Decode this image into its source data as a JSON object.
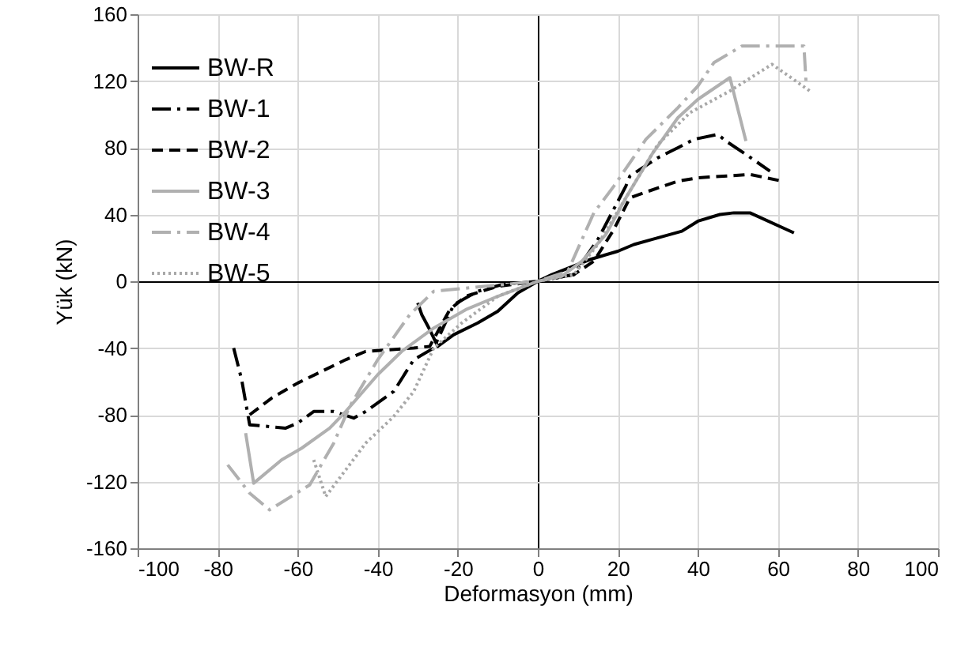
{
  "chart_data": {
    "type": "line",
    "xlabel": "Deformasyon (mm)",
    "ylabel": "Yük (kN)",
    "xlim": [
      -100,
      100
    ],
    "xticks": [
      -100,
      -80,
      -60,
      -40,
      -20,
      0,
      20,
      40,
      60,
      80,
      100
    ],
    "ylim": [
      -160,
      160
    ],
    "yticks": [
      -160,
      -120,
      -80,
      -40,
      0,
      40,
      80,
      120,
      160
    ],
    "grid": true,
    "legend": "top left",
    "series": [
      {
        "name": "BW-R",
        "color": "#000000",
        "line_style": "solid",
        "x": [
          -30,
          -29,
          -27,
          -25,
          -21,
          -15,
          -10,
          -5,
          0,
          3.5,
          13,
          20,
          24,
          28.5,
          36,
          40,
          45.5,
          49,
          53,
          64
        ],
        "values": [
          -13,
          -20,
          -29,
          -39,
          -32,
          -25,
          -18,
          -7,
          0,
          4,
          13,
          18,
          22,
          25,
          30,
          36,
          40,
          41,
          41,
          29
        ]
      },
      {
        "name": "BW-1",
        "color": "#000000",
        "line_style": "dashdot",
        "x": [
          -76,
          -74,
          -72,
          -63,
          -60,
          -56,
          -51,
          -46,
          -43,
          -36,
          -31,
          -26,
          -21,
          -15,
          -9,
          0,
          9,
          15,
          22,
          23,
          30,
          35,
          39,
          45,
          47,
          52,
          58
        ],
        "values": [
          -40,
          -59,
          -86,
          -88,
          -85,
          -78,
          -78,
          -82,
          -78,
          -66,
          -47,
          -40,
          -14,
          -6,
          -2,
          0,
          4,
          25,
          57,
          63,
          74,
          80,
          85,
          88,
          84,
          76,
          66
        ]
      },
      {
        "name": "BW-2",
        "color": "#000000",
        "line_style": "dashed",
        "x": [
          -72,
          -66.5,
          -60,
          -48,
          -43,
          -31,
          -27,
          -22,
          -18,
          -10,
          0,
          9,
          14,
          19,
          23,
          26.5,
          35,
          40,
          53,
          61
        ],
        "values": [
          -80,
          -70,
          -61,
          -47,
          -42,
          -40,
          -39,
          -17,
          -9,
          -3,
          0,
          4,
          12,
          31,
          50,
          53,
          60,
          62,
          64,
          60
        ]
      },
      {
        "name": "BW-3",
        "color": "#b0b0b0",
        "line_style": "solid",
        "x": [
          -73,
          -71,
          -64,
          -59,
          -52,
          -48,
          -40,
          -34,
          -26,
          -18,
          -10,
          0,
          6,
          11,
          17,
          22,
          28.5,
          35,
          40,
          48,
          52
        ],
        "values": [
          -91,
          -121,
          -107,
          -100,
          -88,
          -78,
          -56,
          -42,
          -28,
          -17,
          -9,
          0,
          3,
          12,
          28,
          50,
          76,
          98,
          109,
          122,
          84
        ]
      },
      {
        "name": "BW-4",
        "color": "#b0b0b0",
        "line_style": "dashdot",
        "x": [
          -77.5,
          -72,
          -67,
          -57,
          -51,
          -47,
          -40,
          -32,
          -26,
          -13,
          0,
          7.5,
          14,
          19,
          27,
          35,
          40,
          44,
          51,
          66.5,
          67
        ],
        "values": [
          -110,
          -127,
          -137,
          -122,
          -97,
          -75,
          -47,
          -20,
          -6,
          -3,
          0,
          6,
          41,
          57,
          85,
          104,
          117,
          131,
          141,
          141,
          120
        ]
      },
      {
        "name": "BW-5",
        "color": "#a8a8a8",
        "line_style": "dotted",
        "x": [
          -56,
          -53,
          -48,
          -43,
          -36,
          -31,
          -26,
          -19,
          -10,
          0,
          9,
          15,
          22,
          30,
          38,
          48,
          58.5,
          68
        ],
        "values": [
          -107,
          -129,
          -113,
          -97,
          -81,
          -66,
          -40,
          -25,
          -9,
          0,
          4,
          22,
          50,
          82,
          101,
          114,
          130,
          114
        ]
      }
    ]
  }
}
